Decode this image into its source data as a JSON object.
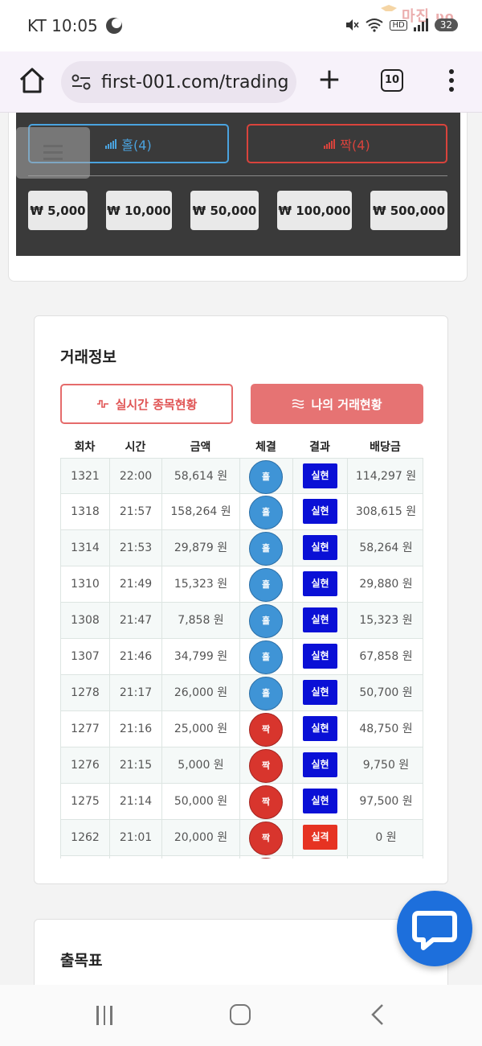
{
  "status_bar": {
    "carrier_time": "KT 10:05",
    "hd": "HD",
    "battery": "32",
    "watermark": "마진우오"
  },
  "browser": {
    "url": "first-001.com/trading",
    "tab_count": "10"
  },
  "bet_panel": {
    "odd_label": "홀(4)",
    "even_label": "짝(4)",
    "odd_color": "#4aa3df",
    "even_color": "#d9433c",
    "chips": [
      "₩ 5,000",
      "₩ 10,000",
      "₩ 50,000",
      "₩ 100,000",
      "₩ 500,000"
    ]
  },
  "trade_info": {
    "title": "거래정보",
    "tab_live": "실시간 종목현황",
    "tab_mine": "나의 거래현황",
    "columns": [
      "회차",
      "시간",
      "금액",
      "체결",
      "결과",
      "배당금"
    ],
    "rows": [
      {
        "round": "1321",
        "time": "22:00",
        "amount": "58,614 원",
        "pick": "홀",
        "pick_type": "odd",
        "result": "실현",
        "result_type": "win",
        "payout": "114,297 원"
      },
      {
        "round": "1318",
        "time": "21:57",
        "amount": "158,264 원",
        "pick": "홀",
        "pick_type": "odd",
        "result": "실현",
        "result_type": "win",
        "payout": "308,615 원"
      },
      {
        "round": "1314",
        "time": "21:53",
        "amount": "29,879 원",
        "pick": "홀",
        "pick_type": "odd",
        "result": "실현",
        "result_type": "win",
        "payout": "58,264 원"
      },
      {
        "round": "1310",
        "time": "21:49",
        "amount": "15,323 원",
        "pick": "홀",
        "pick_type": "odd",
        "result": "실현",
        "result_type": "win",
        "payout": "29,880 원"
      },
      {
        "round": "1308",
        "time": "21:47",
        "amount": "7,858 원",
        "pick": "홀",
        "pick_type": "odd",
        "result": "실현",
        "result_type": "win",
        "payout": "15,323 원"
      },
      {
        "round": "1307",
        "time": "21:46",
        "amount": "34,799 원",
        "pick": "홀",
        "pick_type": "odd",
        "result": "실현",
        "result_type": "win",
        "payout": "67,858 원"
      },
      {
        "round": "1278",
        "time": "21:17",
        "amount": "26,000 원",
        "pick": "홀",
        "pick_type": "odd",
        "result": "실현",
        "result_type": "win",
        "payout": "50,700 원"
      },
      {
        "round": "1277",
        "time": "21:16",
        "amount": "25,000 원",
        "pick": "짝",
        "pick_type": "even",
        "result": "실현",
        "result_type": "win",
        "payout": "48,750 원"
      },
      {
        "round": "1276",
        "time": "21:15",
        "amount": "5,000 원",
        "pick": "짝",
        "pick_type": "even",
        "result": "실현",
        "result_type": "win",
        "payout": "9,750 원"
      },
      {
        "round": "1275",
        "time": "21:14",
        "amount": "50,000 원",
        "pick": "짝",
        "pick_type": "even",
        "result": "실현",
        "result_type": "win",
        "payout": "97,500 원"
      },
      {
        "round": "1262",
        "time": "21:01",
        "amount": "20,000 원",
        "pick": "짝",
        "pick_type": "even",
        "result": "실격",
        "result_type": "lose",
        "payout": "0 원"
      },
      {
        "round": "",
        "time": "",
        "amount": "",
        "pick": "",
        "pick_type": "even",
        "result": "",
        "result_type": "none",
        "payout": ""
      }
    ]
  },
  "chart_section": {
    "title": "출목표"
  }
}
